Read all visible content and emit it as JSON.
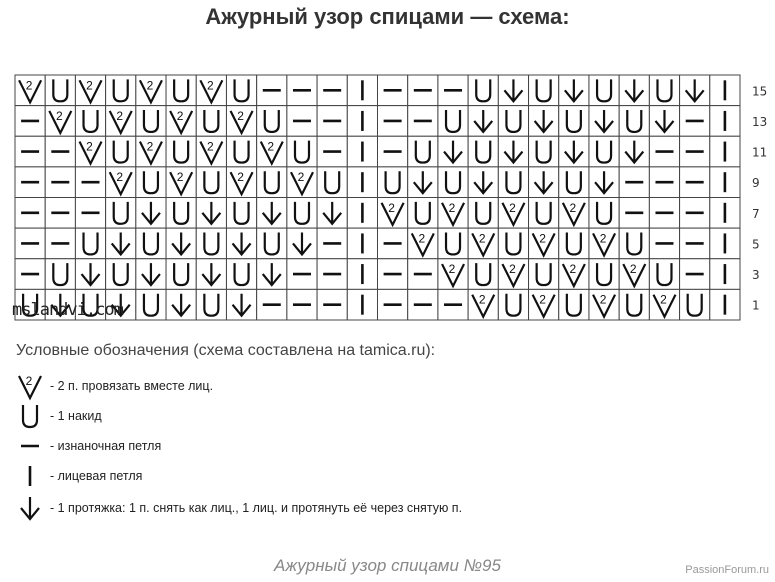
{
  "title": "Ажурный узор спицами — схема:",
  "watermark": "mslandvi.com",
  "chart": {
    "row_numbers": [
      "15",
      "13",
      "11",
      "9",
      "7",
      "5",
      "3",
      "1"
    ],
    "symbols_key": {
      "V": "k2tog",
      "U": "yarn-over",
      "-": "purl",
      "I": "knit",
      "D": "slip-knit-pass"
    },
    "rows": [
      "VUVUVUVU---I---UDUDUDUDI",
      "-VUVUVUVU--I--UDUDUDUD-I",
      "--VUVUVUVU-I-UDUDUDUD--I",
      "---VUVUVUVUIUDUDUDUD---I",
      "---UDUDUDUDIVUVUVUVU---I",
      "--UDUDUDUD-I-VUVUVUVU--I",
      "-UDUDUDUD--I--VUVUVUVU-I",
      "UDUDUDUD---I---VUVUVUVUI"
    ]
  },
  "legend": {
    "title": "Условные обозначения (схема составлена на tamica.ru):",
    "items": [
      {
        "symbol": "V",
        "text": "- 2 п. провязать вместе лиц."
      },
      {
        "symbol": "U",
        "text": "- 1 накид"
      },
      {
        "symbol": "-",
        "text": "- изнаночная петля"
      },
      {
        "symbol": "I",
        "text": "- лицевая петля"
      },
      {
        "symbol": "D",
        "text": "- 1 протяжка: 1 п. снять как лиц., 1 лиц. и протянуть её через снятую п."
      }
    ]
  },
  "caption": "Ажурный узор спицами №95",
  "site": "PassionForum.ru"
}
